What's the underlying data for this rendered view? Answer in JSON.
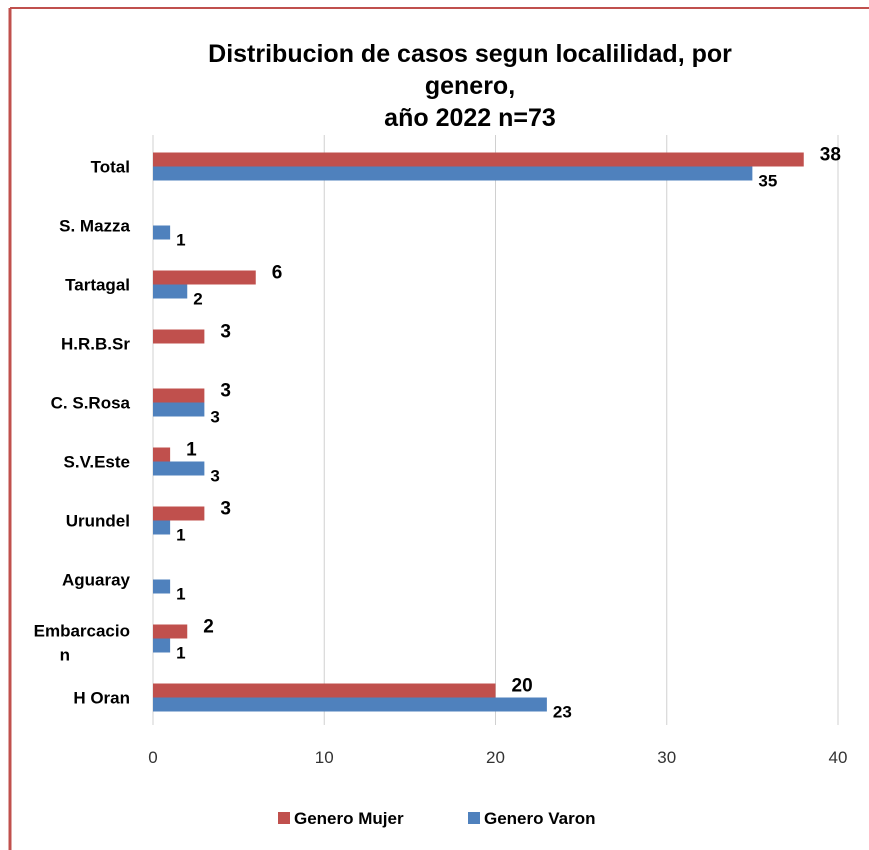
{
  "chart_data": {
    "type": "bar",
    "orientation": "horizontal",
    "title": "Distribucion de casos segun  localilidad, por\ngenero,\naño 2022 n=73",
    "categories": [
      "Total",
      "S. Mazza",
      "Tartagal",
      "H.R.B.Sr",
      "C. S.Rosa",
      "S.V.Este",
      "Urundel",
      "Aguaray",
      "Embarcacion",
      "H Oran"
    ],
    "series": [
      {
        "name": "Genero Mujer",
        "color": "#c0504d",
        "values": [
          38,
          null,
          6,
          3,
          3,
          1,
          3,
          null,
          2,
          20
        ]
      },
      {
        "name": "Genero Varon",
        "color": "#4f81bd",
        "values": [
          35,
          1,
          2,
          null,
          3,
          3,
          1,
          1,
          1,
          23
        ]
      }
    ],
    "xlim": [
      0,
      40
    ],
    "xticks": [
      0,
      10,
      20,
      30,
      40
    ],
    "grid": true,
    "legend": "bottom"
  }
}
